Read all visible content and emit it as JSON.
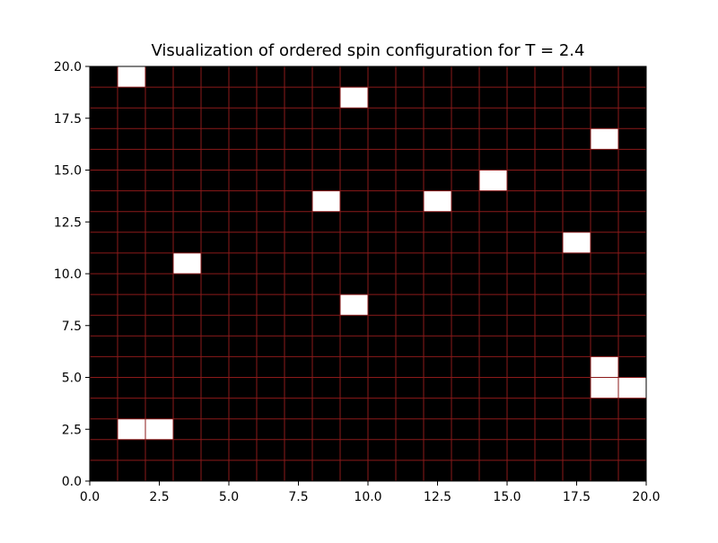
{
  "chart_data": {
    "type": "heatmap",
    "title": "Visualization of ordered spin configuration for T = 2.4",
    "xlabel": "",
    "ylabel": "",
    "xlim": [
      0,
      20
    ],
    "ylim": [
      0,
      20
    ],
    "x_ticks": [
      "0.0",
      "2.5",
      "5.0",
      "7.5",
      "10.0",
      "12.5",
      "15.0",
      "17.5",
      "20.0"
    ],
    "y_ticks": [
      "0.0",
      "2.5",
      "5.0",
      "7.5",
      "10.0",
      "12.5",
      "15.0",
      "17.5",
      "20.0"
    ],
    "grid": true,
    "grid_columns": 20,
    "grid_rows": 20,
    "colors": {
      "spin_down": "#000000",
      "spin_up": "#ffffff",
      "grid_line": "#8b1a1a"
    },
    "spin_up_cells": [
      {
        "col": 1,
        "row": 19
      },
      {
        "col": 9,
        "row": 18
      },
      {
        "col": 18,
        "row": 16
      },
      {
        "col": 14,
        "row": 14
      },
      {
        "col": 8,
        "row": 13
      },
      {
        "col": 12,
        "row": 13
      },
      {
        "col": 17,
        "row": 11
      },
      {
        "col": 3,
        "row": 10
      },
      {
        "col": 9,
        "row": 8
      },
      {
        "col": 18,
        "row": 5
      },
      {
        "col": 18,
        "row": 4
      },
      {
        "col": 19,
        "row": 4
      },
      {
        "col": 1,
        "row": 2
      },
      {
        "col": 2,
        "row": 2
      }
    ]
  }
}
